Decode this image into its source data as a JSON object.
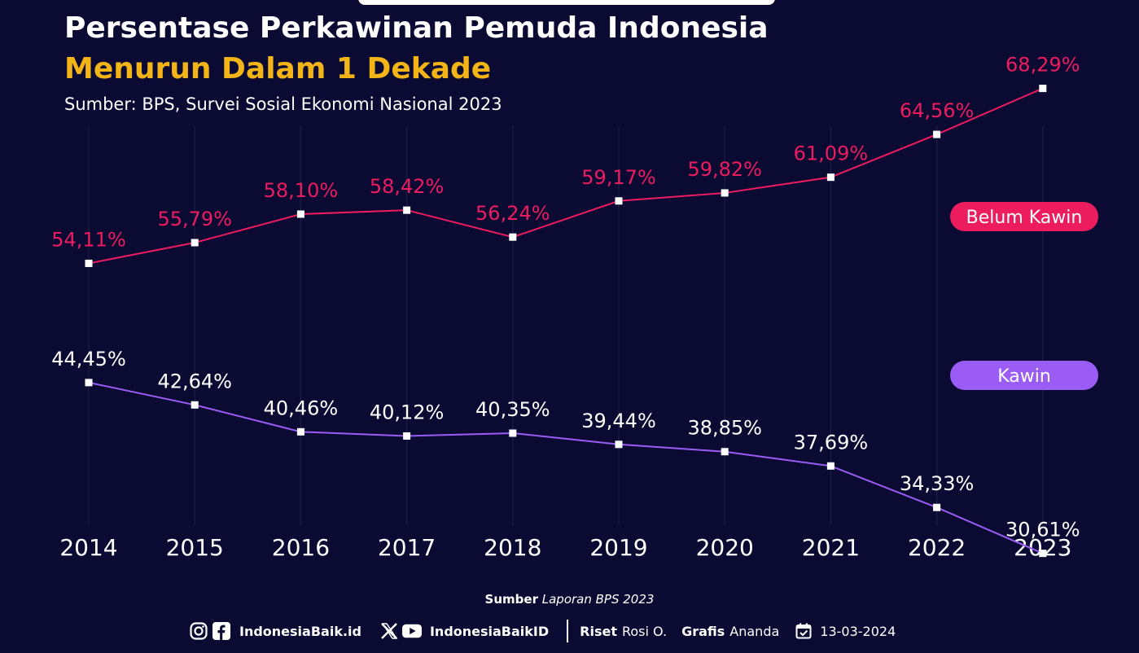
{
  "header": {
    "title_line1": "Persentase Perkawinan Pemuda Indonesia",
    "title_line2": "Menurun Dalam 1 Dekade",
    "source": "Sumber: BPS, Survei Sosial Ekonomi Nasional 2023"
  },
  "chart_data": {
    "type": "line",
    "x": [
      "2014",
      "2015",
      "2016",
      "2017",
      "2018",
      "2019",
      "2020",
      "2021",
      "2022",
      "2023"
    ],
    "ylim": [
      25,
      75
    ],
    "grid": "vertical",
    "legend_placement": "right",
    "series": [
      {
        "name": "Belum Kawin",
        "color": "#ec1c5f",
        "values": [
          54.11,
          55.79,
          58.1,
          58.42,
          56.24,
          59.17,
          59.82,
          61.09,
          64.56,
          68.29
        ],
        "labels": [
          "54,11%",
          "55,79%",
          "58,10%",
          "58,42%",
          "56,24%",
          "59,17%",
          "59,82%",
          "61,09%",
          "64,56%",
          "68,29%"
        ]
      },
      {
        "name": "Kawin",
        "color": "#9b5cf6",
        "values": [
          44.45,
          42.64,
          40.46,
          40.12,
          40.35,
          39.44,
          38.85,
          37.69,
          34.33,
          30.61
        ],
        "labels": [
          "44,45%",
          "42,64%",
          "40,46%",
          "40,12%",
          "40,35%",
          "39,44%",
          "38,85%",
          "37,69%",
          "34,33%",
          "30,61%"
        ]
      }
    ]
  },
  "footer": {
    "source_label": "Sumber",
    "source_value": "Laporan BPS 2023",
    "social_handle_1": "IndonesiaBaik.id",
    "social_handle_2": "IndonesiaBaikID",
    "riset_label": "Riset",
    "riset_value": "Rosi O.",
    "grafis_label": "Grafis",
    "grafis_value": "Ananda",
    "date": "13-03-2024",
    "icons": [
      "instagram-icon",
      "facebook-icon",
      "x-icon",
      "youtube-icon",
      "calendar-icon"
    ]
  }
}
